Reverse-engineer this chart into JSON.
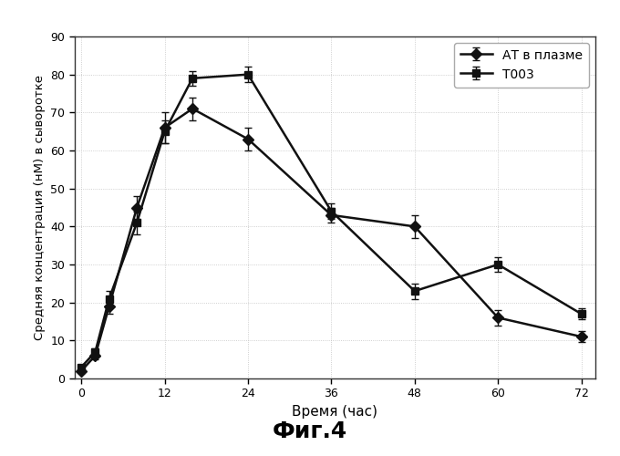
{
  "title": "Фиг.4",
  "xlabel": "Время (час)",
  "ylabel": "Средняя концентрация (нМ) в сыворотке",
  "x_ticks": [
    0,
    12,
    24,
    36,
    48,
    60,
    72
  ],
  "ylim": [
    0,
    90
  ],
  "yticks": [
    0,
    10,
    20,
    30,
    40,
    50,
    60,
    70,
    80,
    90
  ],
  "xlim": [
    -1,
    74
  ],
  "series": [
    {
      "label": "АТ в плазме",
      "x": [
        0,
        2,
        4,
        8,
        12,
        16,
        24,
        36,
        48,
        60,
        72
      ],
      "y": [
        2,
        6,
        19,
        45,
        66,
        71,
        63,
        43,
        40,
        16,
        11
      ],
      "yerr": [
        0.5,
        1,
        2,
        3,
        4,
        3,
        3,
        2,
        3,
        2,
        1.5
      ],
      "color": "#111111",
      "marker": "D",
      "markersize": 6,
      "linewidth": 1.8
    },
    {
      "label": "Т003",
      "x": [
        0,
        2,
        4,
        8,
        12,
        16,
        24,
        36,
        48,
        60,
        72
      ],
      "y": [
        3,
        7,
        21,
        41,
        65,
        79,
        80,
        44,
        23,
        30,
        17
      ],
      "yerr": [
        0.5,
        1,
        2,
        3,
        3,
        2,
        2,
        2,
        2,
        2,
        1.5
      ],
      "color": "#111111",
      "marker": "s",
      "markersize": 6,
      "linewidth": 1.8
    }
  ],
  "legend_loc": "upper right",
  "background_color": "#ffffff",
  "grid_color": "#bbbbbb",
  "fig_width": 6.8,
  "fig_height": 5.0,
  "dpi": 100
}
